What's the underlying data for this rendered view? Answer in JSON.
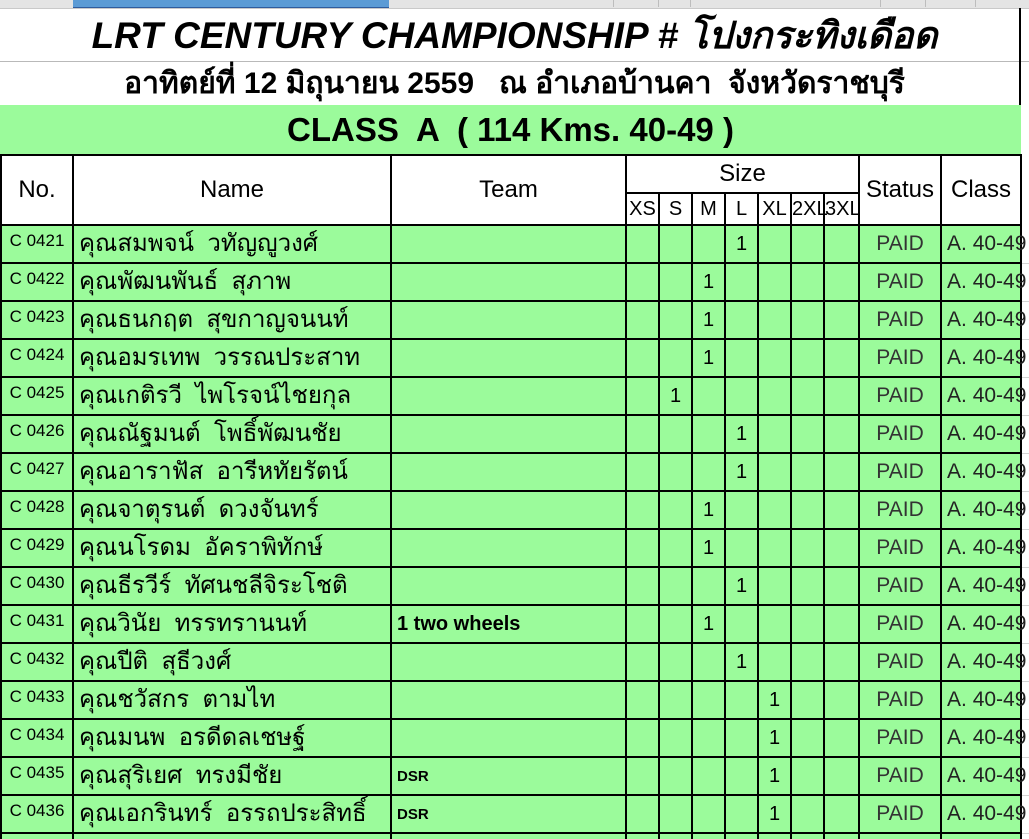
{
  "title": "LRT CENTURY CHAMPIONSHIP # โปงกระทิงเดือด",
  "subtitle": "อาทิตย์ที่ 12 มิถุนายน 2559   ณ อำเภอบ้านคา  จังหวัดราชบุรี",
  "class_banner": "CLASS  A  ( 114 Kms. 40-49 )",
  "table": {
    "headers": {
      "no": "No.",
      "name": "Name",
      "team": "Team",
      "size": "Size",
      "status": "Status",
      "class": "Class"
    },
    "size_columns": [
      "XS",
      "S",
      "M",
      "L",
      "XL",
      "2XL",
      "3XL"
    ],
    "size_mark_value": "1",
    "rows": [
      {
        "no": "C 0421",
        "name": "คุณสมพจน์  วทัญญูวงศ์",
        "team": "",
        "size": "L",
        "status": "PAID",
        "class": "A. 40-49"
      },
      {
        "no": "C 0422",
        "name": "คุณพัฒนพันธ์  สุภาพ",
        "team": "",
        "size": "M",
        "status": "PAID",
        "class": "A. 40-49"
      },
      {
        "no": "C 0423",
        "name": "คุณธนกฤต  สุขกาญจนนท์",
        "team": "",
        "size": "M",
        "status": "PAID",
        "class": "A. 40-49"
      },
      {
        "no": "C 0424",
        "name": "คุณอมรเทพ  วรรณประสาท",
        "team": "",
        "size": "M",
        "status": "PAID",
        "class": "A. 40-49"
      },
      {
        "no": "C 0425",
        "name": "คุณเกติรวี  ไพโรจน์ไชยกุล",
        "team": "",
        "size": "S",
        "status": "PAID",
        "class": "A. 40-49"
      },
      {
        "no": "C 0426",
        "name": "คุณณัฐมนต์  โพธิ์พัฒนชัย",
        "team": "",
        "size": "L",
        "status": "PAID",
        "class": "A. 40-49"
      },
      {
        "no": "C 0427",
        "name": "คุณอาราฟัส  อารีหทัยรัตน์",
        "team": "",
        "size": "L",
        "status": "PAID",
        "class": "A. 40-49"
      },
      {
        "no": "C 0428",
        "name": "คุณจาตุรนต์  ดวงจันทร์",
        "team": "",
        "size": "M",
        "status": "PAID",
        "class": "A. 40-49"
      },
      {
        "no": "C 0429",
        "name": "คุณนโรดม  อัคราพิทักษ์",
        "team": "",
        "size": "M",
        "status": "PAID",
        "class": "A. 40-49"
      },
      {
        "no": "C 0430",
        "name": "คุณธีรวีร์  ทัศนชลีจิระโชติ",
        "team": "",
        "size": "L",
        "status": "PAID",
        "class": "A. 40-49"
      },
      {
        "no": "C 0431",
        "name": "คุณวินัย  ทรรทรานนท์",
        "team": "1 two wheels",
        "size": "M",
        "status": "PAID",
        "class": "A. 40-49"
      },
      {
        "no": "C 0432",
        "name": "คุณปีติ  สุธีวงศ์",
        "team": "",
        "size": "L",
        "status": "PAID",
        "class": "A. 40-49"
      },
      {
        "no": "C 0433",
        "name": "คุณชวัสกร  ตามไท",
        "team": "",
        "size": "XL",
        "status": "PAID",
        "class": "A. 40-49"
      },
      {
        "no": "C 0434",
        "name": "คุณมนพ  อรดีดลเชษฐ์",
        "team": "",
        "size": "XL",
        "status": "PAID",
        "class": "A. 40-49"
      },
      {
        "no": "C 0435",
        "name": "คุณสุริเยศ  ทรงมีชัย",
        "team": "DSR",
        "size": "XL",
        "status": "PAID",
        "class": "A. 40-49"
      },
      {
        "no": "C 0436",
        "name": "คุณเอกรินทร์  อรรถประสิทธิ์",
        "team": "DSR",
        "size": "XL",
        "status": "PAID",
        "class": "A. 40-49"
      }
    ]
  },
  "colors": {
    "cell_green": "#9bfb9b",
    "selection_blue": "#5b9bd5",
    "grid_black": "#000000",
    "status_text": "#333333"
  }
}
